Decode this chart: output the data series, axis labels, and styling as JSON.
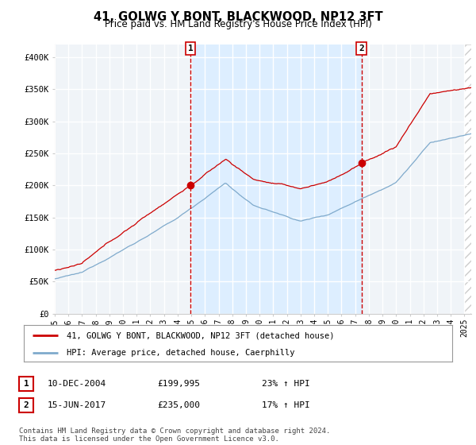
{
  "title": "41, GOLWG Y BONT, BLACKWOOD, NP12 3FT",
  "subtitle": "Price paid vs. HM Land Registry's House Price Index (HPI)",
  "ylim": [
    0,
    420000
  ],
  "yticks": [
    0,
    50000,
    100000,
    150000,
    200000,
    250000,
    300000,
    350000,
    400000
  ],
  "ytick_labels": [
    "£0",
    "£50K",
    "£100K",
    "£150K",
    "£200K",
    "£250K",
    "£300K",
    "£350K",
    "£400K"
  ],
  "line_color_price": "#cc0000",
  "line_color_hpi": "#7faacc",
  "shade_color": "#ddeeff",
  "bg_color": "#f0f4f8",
  "grid_color": "#ffffff",
  "purchase1_x": 2004.94,
  "purchase1_y": 199995,
  "purchase2_x": 2017.46,
  "purchase2_y": 235000,
  "legend_line1": "41, GOLWG Y BONT, BLACKWOOD, NP12 3FT (detached house)",
  "legend_line2": "HPI: Average price, detached house, Caerphilly",
  "table_row1": [
    "1",
    "10-DEC-2004",
    "£199,995",
    "23% ↑ HPI"
  ],
  "table_row2": [
    "2",
    "15-JUN-2017",
    "£235,000",
    "17% ↑ HPI"
  ],
  "footnote": "Contains HM Land Registry data © Crown copyright and database right 2024.\nThis data is licensed under the Open Government Licence v3.0.",
  "xmin": 1995,
  "xmax": 2025.5
}
